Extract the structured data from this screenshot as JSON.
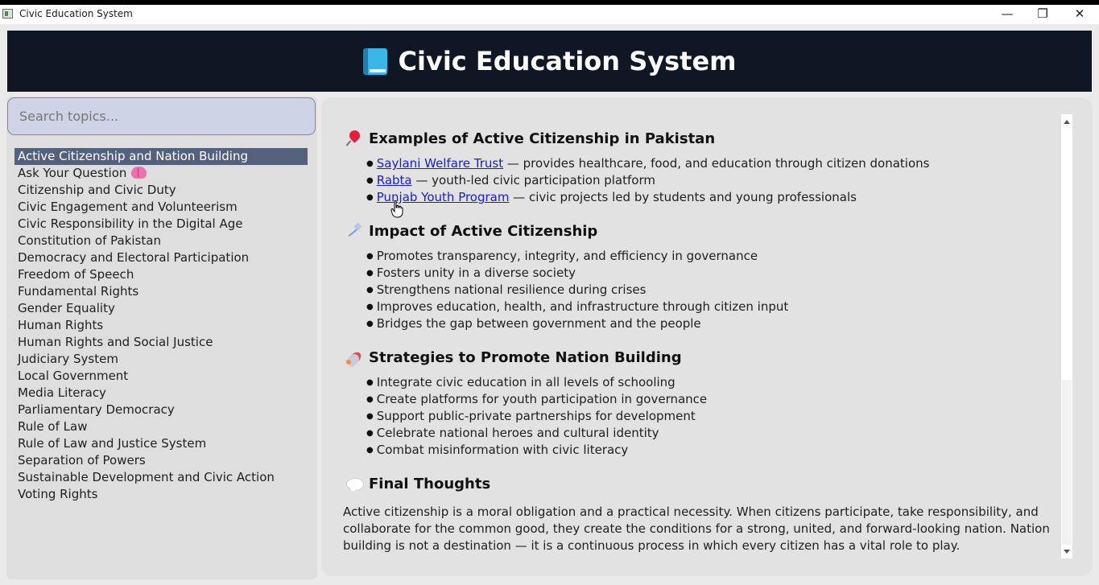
{
  "window": {
    "title": "Civic Education System",
    "controls": {
      "minimize": "—",
      "restore": "❐",
      "close": "✕"
    }
  },
  "header": {
    "title": "Civic Education System",
    "icon": "book-icon"
  },
  "search": {
    "placeholder": "Search topics...",
    "value": ""
  },
  "sidebar": {
    "topics": [
      "Active Citizenship and Nation Building",
      "Ask Your Question",
      "Citizenship and Civic Duty",
      "Civic Engagement and Volunteerism",
      "Civic Responsibility in the Digital Age",
      "Constitution of Pakistan",
      "Democracy and Electoral Participation",
      "Freedom of Speech",
      "Fundamental Rights",
      "Gender Equality",
      "Human Rights",
      "Human Rights and Social Justice",
      "Judiciary System",
      "Local Government",
      "Media Literacy",
      "Parliamentary Democracy",
      "Rule of Law",
      "Rule of Law and Justice System",
      "Separation of Powers",
      "Sustainable Development and Civic Action",
      "Voting Rights"
    ],
    "selected_topic": "Active Citizenship and Nation Building"
  },
  "content": {
    "examples": {
      "title": "Examples of Active Citizenship in Pakistan",
      "icon": "pin-icon",
      "items": [
        {
          "link": "Saylani Welfare Trust",
          "text": " — provides healthcare, food, and education through citizen donations"
        },
        {
          "link": "Rabta",
          "text": " — youth-led civic participation platform"
        },
        {
          "link": "Punjab Youth Program",
          "text": " — civic projects led by students and young professionals"
        }
      ]
    },
    "impact": {
      "title": "Impact of Active Citizenship",
      "icon": "sparkle-icon",
      "items": [
        "Promotes transparency, integrity, and efficiency in governance",
        "Fosters unity in a diverse society",
        "Strengthens national resilience during crises",
        "Improves education, health, and infrastructure through citizen input",
        "Bridges the gap between government and the people"
      ]
    },
    "strategies": {
      "title": "Strategies to Promote Nation Building",
      "icon": "rocket-icon",
      "items": [
        "Integrate civic education in all levels of schooling",
        "Create platforms for youth participation in governance",
        "Support public-private partnerships for development",
        "Celebrate national heroes and cultural identity",
        "Combat misinformation with civic literacy"
      ]
    },
    "final_thoughts": {
      "title": "Final Thoughts",
      "icon": "speech-icon",
      "paragraph": "Active citizenship is a moral obligation and a practical necessity. When citizens participate, take responsibility, and collaborate for the common good, they create the conditions for a strong, united, and forward-looking nation. Nation building is not a destination — it is a continuous process in which every citizen has a vital role to play."
    }
  },
  "colors": {
    "header_bg": "#0f1724",
    "selected_bg": "#54617d",
    "link": "#1a20c8",
    "search_bg": "#cfd3e6",
    "search_border": "#7b84c2"
  }
}
